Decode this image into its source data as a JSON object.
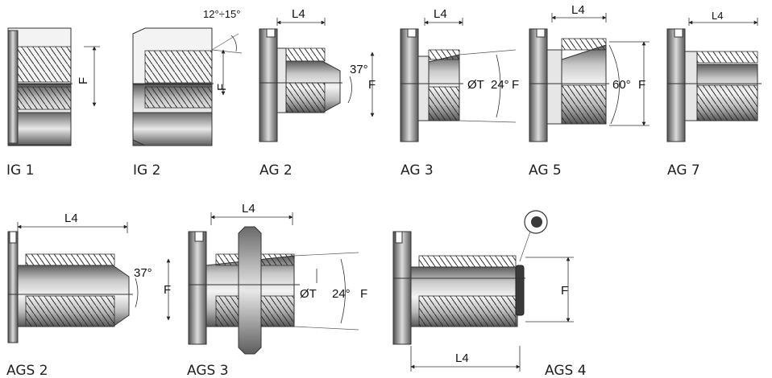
{
  "captions": {
    "ig1": "IG 1",
    "ig2": "IG 2",
    "ag2": "AG 2",
    "ag3": "AG 3",
    "ag5": "AG 5",
    "ag7": "AG 7",
    "ags2": "AGS 2",
    "ags3": "AGS 3",
    "ags4": "AGS 4"
  },
  "dimensions": {
    "l4": "L4",
    "f": "F",
    "angle_12_15": "12°÷15°",
    "angle_37": "37°",
    "angle_24": "24°",
    "angle_60": "60°",
    "diameter_t": "ØT"
  },
  "colors": {
    "steel_light": "#f2f2f2",
    "steel_mid": "#a9a9a9",
    "steel_dark": "#5a5a5a",
    "seal_ring": "#3a3a3a",
    "line": "#333333"
  }
}
